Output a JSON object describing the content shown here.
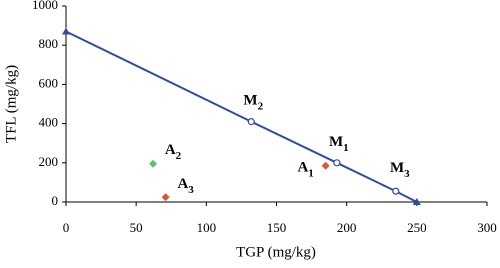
{
  "chart_data": {
    "type": "scatter",
    "xlabel": "TGP (mg/kg)",
    "ylabel": "TFL (mg/kg)",
    "xlim": [
      0,
      300
    ],
    "xticks": [
      0,
      50,
      100,
      150,
      200,
      250,
      300
    ],
    "ylim": [
      0,
      1000
    ],
    "yticks": [
      0,
      200,
      400,
      600,
      800,
      1000
    ],
    "line": {
      "color": "#2d4ea0",
      "x": [
        0,
        132,
        193,
        235,
        250
      ],
      "y": [
        870,
        410,
        200,
        55,
        0
      ],
      "markers": [
        "triangle",
        "circle",
        "circle",
        "circle",
        "triangle"
      ],
      "labels": [
        null,
        {
          "text": "M",
          "sub": "2"
        },
        {
          "text": "M",
          "sub": "1"
        },
        {
          "text": "M",
          "sub": "3"
        },
        null
      ]
    },
    "samples": {
      "x": [
        185,
        62,
        71
      ],
      "y": [
        185,
        195,
        25
      ],
      "colors": [
        "#d6593a",
        "#5cbf6a",
        "#d6593a"
      ],
      "labels": [
        {
          "text": "A",
          "sub": "1"
        },
        {
          "text": "A",
          "sub": "2"
        },
        {
          "text": "A",
          "sub": "3"
        }
      ]
    }
  }
}
